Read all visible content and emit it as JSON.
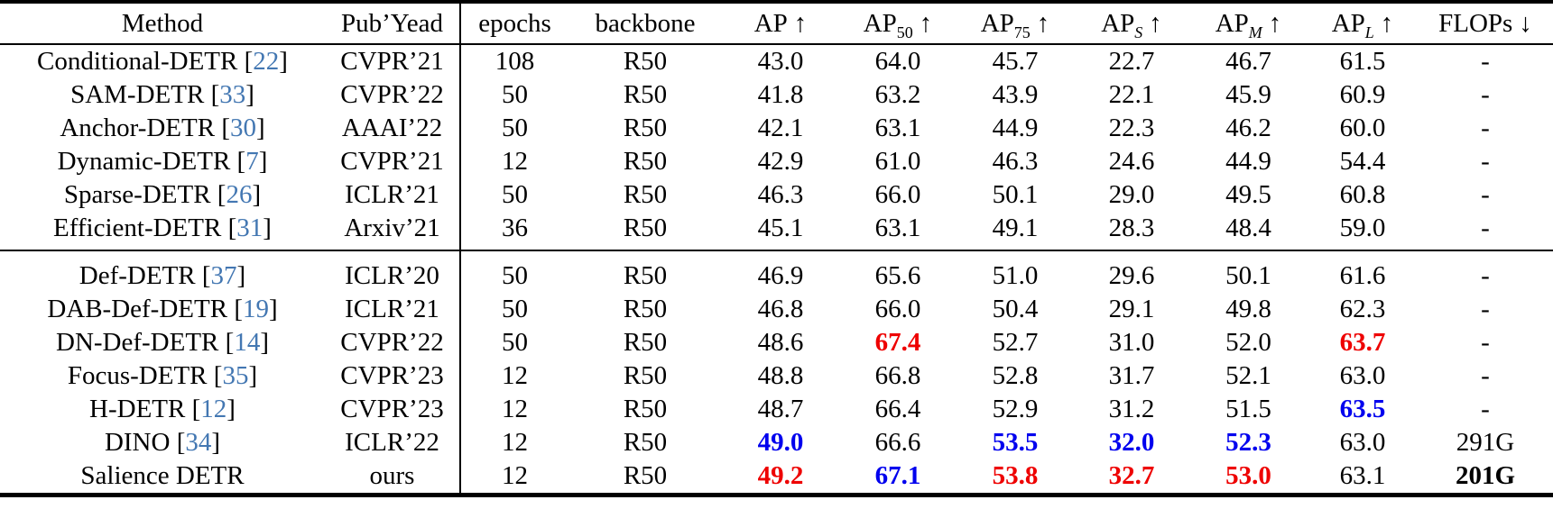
{
  "colors": {
    "best_red": "#ee0000",
    "second_blue": "#0000ee",
    "citation_blue": "#4377b2"
  },
  "table": {
    "header": [
      {
        "key": "method",
        "text": "Method"
      },
      {
        "key": "pub-year",
        "text": "Pub’Yead"
      },
      {
        "key": "epochs",
        "text": "epochs"
      },
      {
        "key": "backbone",
        "text": "backbone"
      },
      {
        "key": "ap",
        "text": "AP",
        "arrow": "↑"
      },
      {
        "key": "ap50",
        "text": "AP",
        "sub": "50",
        "arrow": "↑"
      },
      {
        "key": "ap75",
        "text": "AP",
        "sub": "75",
        "arrow": "↑"
      },
      {
        "key": "ap-small",
        "text": "AP",
        "sub": "S",
        "sub_italic": true,
        "arrow": "↑"
      },
      {
        "key": "ap-medium",
        "text": "AP",
        "sub": "M",
        "sub_italic": true,
        "arrow": "↑"
      },
      {
        "key": "ap-large",
        "text": "AP",
        "sub": "L",
        "sub_italic": true,
        "arrow": "↑"
      },
      {
        "key": "flops",
        "text": "FLOPs",
        "arrow": "↓"
      }
    ],
    "groups": [
      {
        "rows": [
          {
            "method": "Conditional-DETR",
            "cite": "22",
            "pub": "CVPR’21",
            "epochs": "108",
            "backbone": "R50",
            "cells": [
              {
                "v": "43.0"
              },
              {
                "v": "64.0"
              },
              {
                "v": "45.7"
              },
              {
                "v": "22.7"
              },
              {
                "v": "46.7"
              },
              {
                "v": "61.5"
              },
              {
                "v": "-"
              }
            ]
          },
          {
            "method": "SAM-DETR",
            "cite": "33",
            "pub": "CVPR’22",
            "epochs": "50",
            "backbone": "R50",
            "cells": [
              {
                "v": "41.8"
              },
              {
                "v": "63.2"
              },
              {
                "v": "43.9"
              },
              {
                "v": "22.1"
              },
              {
                "v": "45.9"
              },
              {
                "v": "60.9"
              },
              {
                "v": "-"
              }
            ]
          },
          {
            "method": "Anchor-DETR",
            "cite": "30",
            "pub": "AAAI’22",
            "epochs": "50",
            "backbone": "R50",
            "cells": [
              {
                "v": "42.1"
              },
              {
                "v": "63.1"
              },
              {
                "v": "44.9"
              },
              {
                "v": "22.3"
              },
              {
                "v": "46.2"
              },
              {
                "v": "60.0"
              },
              {
                "v": "-"
              }
            ]
          },
          {
            "method": "Dynamic-DETR",
            "cite": "7",
            "pub": "CVPR’21",
            "epochs": "12",
            "backbone": "R50",
            "cells": [
              {
                "v": "42.9"
              },
              {
                "v": "61.0"
              },
              {
                "v": "46.3"
              },
              {
                "v": "24.6"
              },
              {
                "v": "44.9"
              },
              {
                "v": "54.4"
              },
              {
                "v": "-"
              }
            ]
          },
          {
            "method": "Sparse-DETR",
            "cite": "26",
            "pub": "ICLR’21",
            "epochs": "50",
            "backbone": "R50",
            "cells": [
              {
                "v": "46.3"
              },
              {
                "v": "66.0"
              },
              {
                "v": "50.1"
              },
              {
                "v": "29.0"
              },
              {
                "v": "49.5"
              },
              {
                "v": "60.8"
              },
              {
                "v": "-"
              }
            ]
          },
          {
            "method": "Efficient-DETR",
            "cite": "31",
            "pub": "Arxiv’21",
            "epochs": "36",
            "backbone": "R50",
            "cells": [
              {
                "v": "45.1"
              },
              {
                "v": "63.1"
              },
              {
                "v": "49.1"
              },
              {
                "v": "28.3"
              },
              {
                "v": "48.4"
              },
              {
                "v": "59.0"
              },
              {
                "v": "-"
              }
            ]
          }
        ]
      },
      {
        "rows": [
          {
            "method": "Def-DETR",
            "cite": "37",
            "pub": "ICLR’20",
            "epochs": "50",
            "backbone": "R50",
            "cells": [
              {
                "v": "46.9"
              },
              {
                "v": "65.6"
              },
              {
                "v": "51.0"
              },
              {
                "v": "29.6"
              },
              {
                "v": "50.1"
              },
              {
                "v": "61.6"
              },
              {
                "v": "-"
              }
            ]
          },
          {
            "method": "DAB-Def-DETR",
            "cite": "19",
            "pub": "ICLR’21",
            "epochs": "50",
            "backbone": "R50",
            "cells": [
              {
                "v": "46.8"
              },
              {
                "v": "66.0"
              },
              {
                "v": "50.4"
              },
              {
                "v": "29.1"
              },
              {
                "v": "49.8"
              },
              {
                "v": "62.3"
              },
              {
                "v": "-"
              }
            ]
          },
          {
            "method": "DN-Def-DETR",
            "cite": "14",
            "pub": "CVPR’22",
            "epochs": "50",
            "backbone": "R50",
            "cells": [
              {
                "v": "48.6"
              },
              {
                "v": "67.4",
                "s": "best"
              },
              {
                "v": "52.7"
              },
              {
                "v": "31.0"
              },
              {
                "v": "52.0"
              },
              {
                "v": "63.7",
                "s": "best"
              },
              {
                "v": "-"
              }
            ]
          },
          {
            "method": "Focus-DETR",
            "cite": "35",
            "pub": "CVPR’23",
            "epochs": "12",
            "backbone": "R50",
            "cells": [
              {
                "v": "48.8"
              },
              {
                "v": "66.8"
              },
              {
                "v": "52.8"
              },
              {
                "v": "31.7"
              },
              {
                "v": "52.1"
              },
              {
                "v": "63.0"
              },
              {
                "v": "-"
              }
            ]
          },
          {
            "method": "H-DETR",
            "cite": "12",
            "pub": "CVPR’23",
            "epochs": "12",
            "backbone": "R50",
            "cells": [
              {
                "v": "48.7"
              },
              {
                "v": "66.4"
              },
              {
                "v": "52.9"
              },
              {
                "v": "31.2"
              },
              {
                "v": "51.5"
              },
              {
                "v": "63.5",
                "s": "second"
              },
              {
                "v": "-"
              }
            ]
          },
          {
            "method": "DINO",
            "cite": "34",
            "pub": "ICLR’22",
            "epochs": "12",
            "backbone": "R50",
            "cells": [
              {
                "v": "49.0",
                "s": "second"
              },
              {
                "v": "66.6"
              },
              {
                "v": "53.5",
                "s": "second"
              },
              {
                "v": "32.0",
                "s": "second"
              },
              {
                "v": "52.3",
                "s": "second"
              },
              {
                "v": "63.0"
              },
              {
                "v": "291G"
              }
            ]
          },
          {
            "method": "Salience DETR",
            "cite": null,
            "pub": "ours",
            "epochs": "12",
            "backbone": "R50",
            "cells": [
              {
                "v": "49.2",
                "s": "best"
              },
              {
                "v": "67.1",
                "s": "second"
              },
              {
                "v": "53.8",
                "s": "best"
              },
              {
                "v": "32.7",
                "s": "best"
              },
              {
                "v": "53.0",
                "s": "best"
              },
              {
                "v": "63.1"
              },
              {
                "v": "201G",
                "s": "bold"
              }
            ]
          }
        ]
      }
    ]
  }
}
